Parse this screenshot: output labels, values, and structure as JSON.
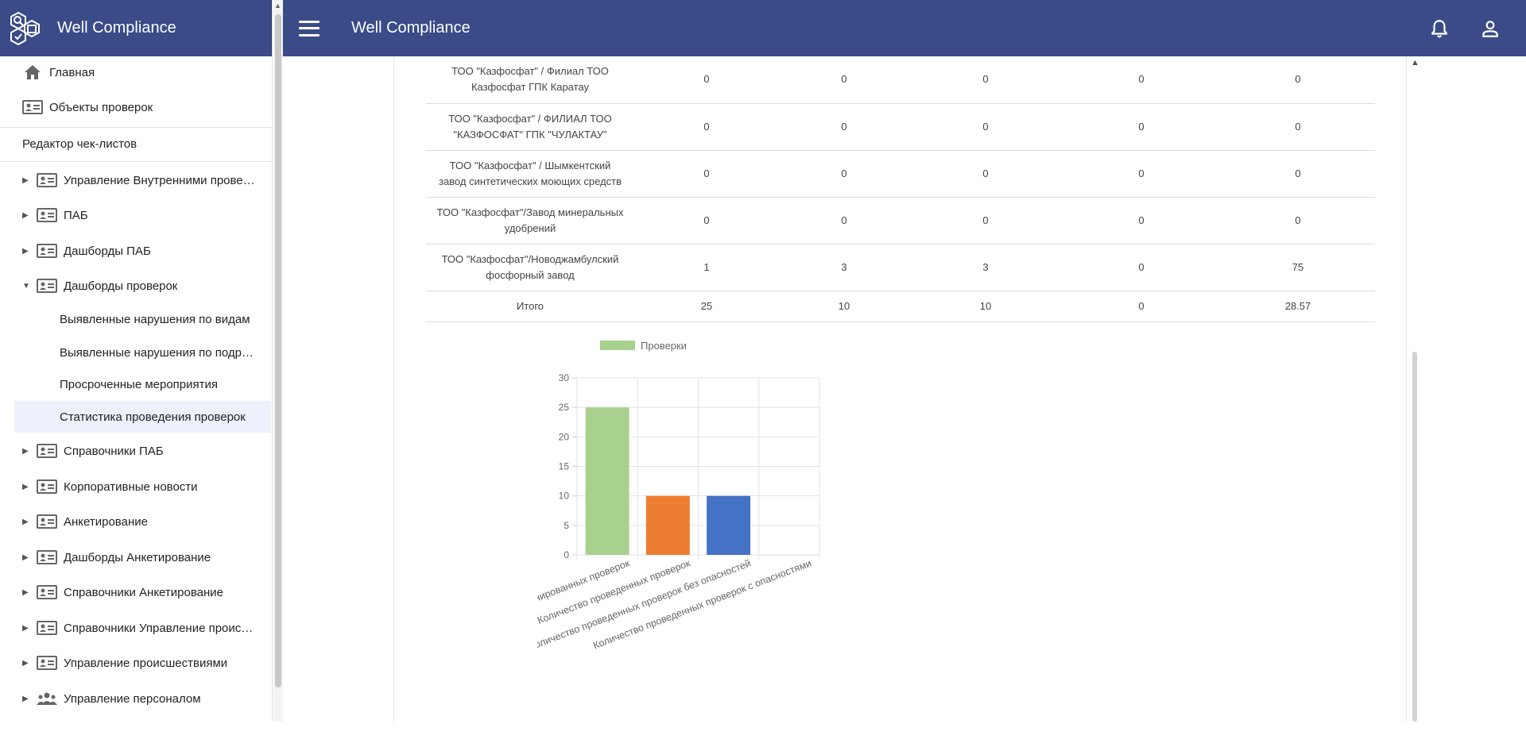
{
  "app": {
    "title": "Well Compliance"
  },
  "sidebar": {
    "title": "Well Compliance",
    "items": [
      {
        "label": "Главная",
        "icon": "home-icon"
      },
      {
        "label": "Объекты проверок",
        "icon": "contact-card-icon"
      },
      {
        "label": "Редактор чек-листов"
      },
      {
        "label": "Управление Внутренними проверками",
        "icon": "contact-card-icon"
      },
      {
        "label": "ПАБ",
        "icon": "contact-card-icon"
      },
      {
        "label": "Дашборды ПАБ",
        "icon": "contact-card-icon"
      },
      {
        "label": "Дашборды проверок",
        "icon": "contact-card-icon"
      },
      {
        "label": "Выявленные нарушения по видам"
      },
      {
        "label": "Выявленные нарушения по подразделениям"
      },
      {
        "label": "Просроченные мероприятия"
      },
      {
        "label": "Статистика проведения проверок"
      },
      {
        "label": "Справочники ПАБ",
        "icon": "contact-card-icon"
      },
      {
        "label": "Корпоративные новости",
        "icon": "contact-card-icon"
      },
      {
        "label": "Анкетирование",
        "icon": "contact-card-icon"
      },
      {
        "label": "Дашборды Анкетирование",
        "icon": "contact-card-icon"
      },
      {
        "label": "Справочники Анкетирование",
        "icon": "contact-card-icon"
      },
      {
        "label": "Справочники Управление происшествиями",
        "icon": "contact-card-icon"
      },
      {
        "label": "Управление происшествиями",
        "icon": "contact-card-icon"
      },
      {
        "label": "Управление персоналом",
        "icon": "people-icon"
      }
    ]
  },
  "topbar": {
    "title": "Well Compliance",
    "icons": [
      "menu-icon",
      "bell-icon",
      "user-icon"
    ]
  },
  "table": {
    "rows": [
      {
        "name_line1": "ТОО \"Казфосфат\" / Филиал ТОО",
        "name_line2": "Казфосфат ГПК Каратау",
        "v": [
          "0",
          "0",
          "0",
          "0",
          "0"
        ]
      },
      {
        "name_line1": "ТОО \"Казфосфат\" / ФИЛИАЛ ТОО",
        "name_line2": "\"КАЗФОСФАТ\" ГПК \"ЧУЛАКТАУ\"",
        "v": [
          "0",
          "0",
          "0",
          "0",
          "0"
        ]
      },
      {
        "name_line1": "ТОО \"Казфосфат\" / Шымкентский",
        "name_line2": "завод синтетических моющих средств",
        "v": [
          "0",
          "0",
          "0",
          "0",
          "0"
        ]
      },
      {
        "name_line1": "ТОО \"Казфосфат\"/Завод минеральных",
        "name_line2": "удобрений",
        "v": [
          "0",
          "0",
          "0",
          "0",
          "0"
        ]
      },
      {
        "name_line1": "ТОО \"Казфосфат\"/Новоджамбулский",
        "name_line2": "фосфорный завод",
        "v": [
          "1",
          "3",
          "3",
          "0",
          "75"
        ]
      }
    ],
    "total": {
      "name": "Итого",
      "v": [
        "25",
        "10",
        "10",
        "0",
        "28.57"
      ]
    }
  },
  "chart_data": {
    "type": "bar",
    "categories": [
      "Количество запланированных проверок",
      "Количество проведенных проверок",
      "Количество проведенных проверок без опасностей",
      "Количество проведенных проверок с опасностями"
    ],
    "series": [
      {
        "name": "Проверки",
        "values": [
          25,
          10,
          10,
          0
        ]
      }
    ],
    "colors": [
      "#a8d18d",
      "#ed7d31",
      "#4472c4",
      "#a5a5a5"
    ],
    "legend_color": "#a8d18d",
    "yticks": [
      "0",
      "5",
      "10",
      "15",
      "20",
      "25",
      "30"
    ],
    "ylim": [
      0,
      30
    ],
    "grid": true,
    "legend": "top"
  }
}
